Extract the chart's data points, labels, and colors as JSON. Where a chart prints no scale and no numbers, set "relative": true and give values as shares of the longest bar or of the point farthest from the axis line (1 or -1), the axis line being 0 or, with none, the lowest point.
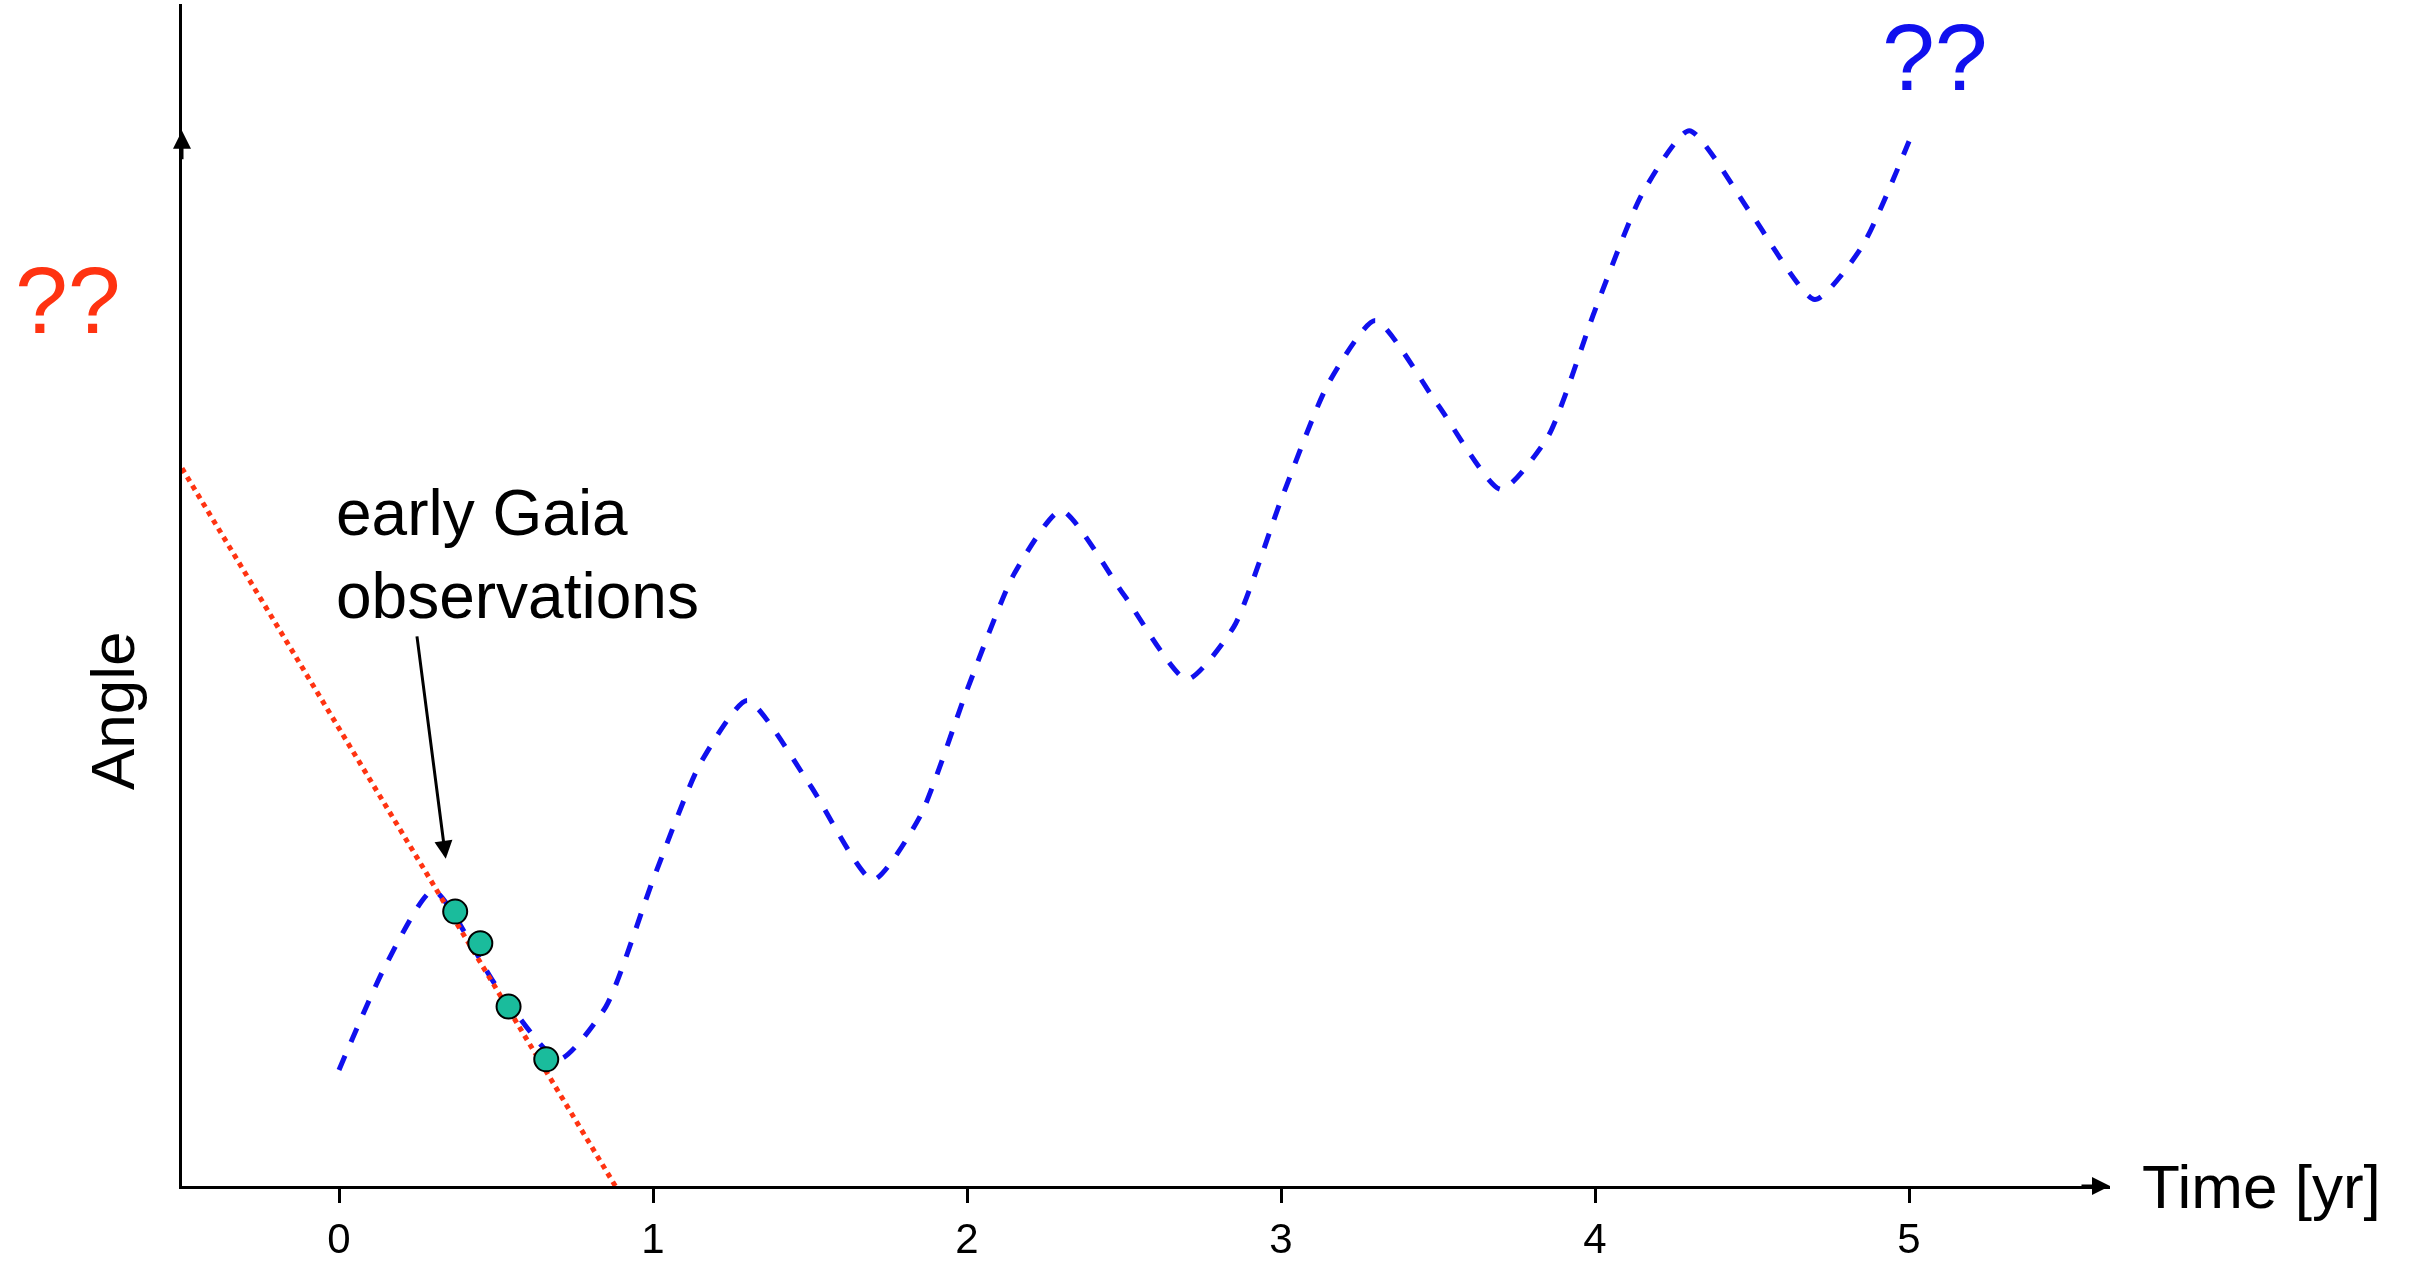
{
  "chart_data": {
    "type": "line",
    "relative": true,
    "xlabel": "Time [yr]",
    "ylabel": "Angle",
    "xlim": [
      -0.5,
      5.64
    ],
    "xticks": [
      0,
      1,
      2,
      3,
      4,
      5
    ],
    "grid": false,
    "legend": false,
    "series": [
      {
        "line_style": "dashed",
        "marker": "none",
        "color": "#1010ee",
        "x": [
          0,
          0.15,
          0.3,
          0.5,
          0.7,
          0.85,
          1.0,
          1.15,
          1.3,
          1.5,
          1.7,
          1.85,
          2.0,
          2.15,
          2.3,
          2.5,
          2.7,
          2.85,
          3.0,
          3.15,
          3.3,
          3.5,
          3.7,
          3.85,
          4.0,
          4.15,
          4.3,
          4.5,
          4.7,
          4.85,
          5.0
        ],
        "values": [
          0.11,
          0.21,
          0.28,
          0.19,
          0.12,
          0.17,
          0.29,
          0.4,
          0.46,
          0.38,
          0.29,
          0.35,
          0.47,
          0.58,
          0.64,
          0.56,
          0.48,
          0.53,
          0.65,
          0.76,
          0.82,
          0.74,
          0.66,
          0.71,
          0.83,
          0.94,
          1.0,
          0.92,
          0.84,
          0.89,
          0.99
        ]
      },
      {
        "line_style": "dotted",
        "marker": "none",
        "color": "#ff3311",
        "x": [
          -0.5,
          0.88
        ],
        "values": [
          0.68,
          0
        ]
      },
      {
        "type": "scatter",
        "marker": "circle",
        "color": "#1abc9c",
        "x": [
          0.37,
          0.45,
          0.54,
          0.66
        ],
        "values": [
          0.26,
          0.23,
          0.17,
          0.12
        ]
      }
    ],
    "annotations": [
      "??",
      "??",
      "early Gaia\nobservations"
    ]
  }
}
